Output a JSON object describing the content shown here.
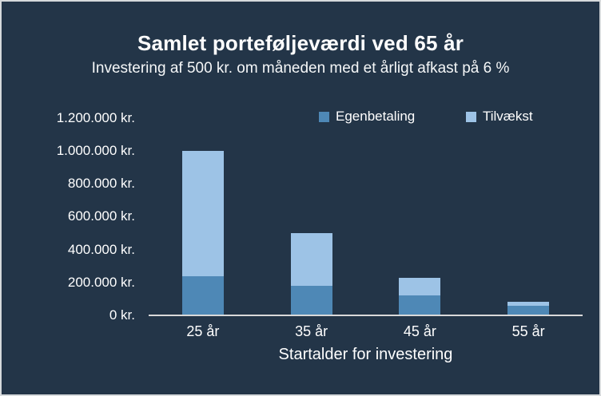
{
  "window": {
    "background": "#233548",
    "border_color": "#D6D9DB"
  },
  "chart_data": {
    "type": "bar",
    "stacked": true,
    "title": "Samlet porteføljeværdi ved 65 år",
    "subtitle": "Investering af 500 kr. om måneden med et årligt afkast på 6 %",
    "categories": [
      "25 år",
      "35 år",
      "45 år",
      "55 år"
    ],
    "series": [
      {
        "name": "Egenbetaling",
        "color": "#4E88B6",
        "values": [
          240000,
          180000,
          120000,
          60000
        ]
      },
      {
        "name": "Tilvækst",
        "color": "#9DC3E6",
        "values": [
          760000,
          320000,
          110000,
          22000
        ]
      }
    ],
    "stack_totals": [
      1000000,
      500000,
      230000,
      82000
    ],
    "xlabel": "Startalder for investering",
    "ylabel": "",
    "y_axis": {
      "ticks": [
        "1.200.000 kr.",
        "1.000.000 kr.",
        "800.000 kr.",
        "600.000 kr.",
        "400.000 kr.",
        "200.000 kr.",
        "0 kr."
      ],
      "min": 0,
      "max": 1200000,
      "tick_step": 200000
    },
    "ylim": [
      0,
      1200000
    ],
    "grid": false,
    "legend_position": "top",
    "axis_line_color": "#D9D9D9",
    "text_color": "#FFFFFF"
  }
}
